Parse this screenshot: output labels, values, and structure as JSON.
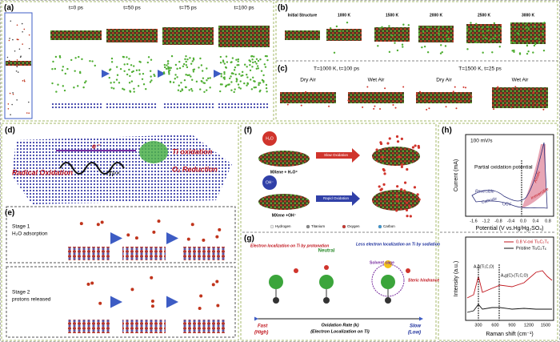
{
  "panel_a": {
    "label": "(a)",
    "times": [
      "t=0 ps",
      "t=50 ps",
      "t=75 ps",
      "t=100 ps"
    ]
  },
  "panel_b": {
    "label": "(b)",
    "temperatures": [
      "Initial Structure",
      "1000 K",
      "1500 K",
      "2000 K",
      "2500 K",
      "3000 K"
    ]
  },
  "panel_c": {
    "label": "(c)",
    "conditions": [
      "T=1000 K, t=100 ps",
      "T=1500 K, t=25 ps"
    ],
    "atmospheres": [
      "Dry Air",
      "Wet Air",
      "Dry Air",
      "Wet Air"
    ]
  },
  "panel_d": {
    "label": "(d)",
    "electron": "e⁻",
    "ti_oxidation": "Ti oxidation",
    "ti_ion": "Ti³⁺",
    "radical": "Radical Oxidation",
    "o2_reduction": "O₂ Reduction"
  },
  "panel_e": {
    "label": "(e)",
    "stage1": "Stage 1",
    "stage1_text": "H₂O adsorption",
    "stage2": "Stage 2",
    "stage2_text": "protons released"
  },
  "panel_f": {
    "label": "(f)",
    "h2o": "H₂O",
    "slow": "Slow Oxidation",
    "mxene_h2o": "MXene + H₂O⁺",
    "oh": "OH⁻",
    "rapid": "Rapid Oxidation",
    "mxene_oh": "MXene +OH⁻",
    "legend": [
      "Hydrogen",
      "Titanium",
      "Oxygen",
      "Carbon"
    ]
  },
  "panel_g": {
    "label": "(g)",
    "left": "Electron localization on Ti by protonation",
    "middle": "Neutral",
    "right": "Less electron localization on Ti by sodiation",
    "solvent": "Solvent cage",
    "steric": "Steric hindrance",
    "fast": "Fast",
    "high": "(High)",
    "axis": "Oxidation Rate (k)",
    "axis2": "(Electron Localization on Ti)",
    "slow": "Slow",
    "low": "(Low)"
  },
  "panel_h": {
    "label": "(h)",
    "scan": "100 mV/s",
    "partial": "Partial oxidation potential",
    "anodic": "Anodic",
    "irrev": "Irreversible",
    "rev": "Reversible",
    "cathodic": "Cathodic",
    "ocv": "OCV",
    "ylabel": "Current (mA)",
    "xlabel": "Potential (V vs.Hg/Hg₂SO₄)",
    "xticks": [
      "-1.6",
      "-1.2",
      "-0.8",
      "-0.4",
      "0.0",
      "0.4",
      "0.8"
    ],
    "legend": [
      "0.8 V-oxi Ti₃C₂Tₓ",
      "Pristine Ti₃C₂Tₓ"
    ],
    "peak1": "A₁g(Ti,C,O)",
    "peak2": "A₁g(C)-(Ti,C,O)",
    "ylabel2": "Intensity (a.u.)",
    "xlabel2": "Raman shift (cm⁻¹)",
    "xticks2": [
      "300",
      "600",
      "900",
      "1200",
      "1500"
    ]
  }
}
